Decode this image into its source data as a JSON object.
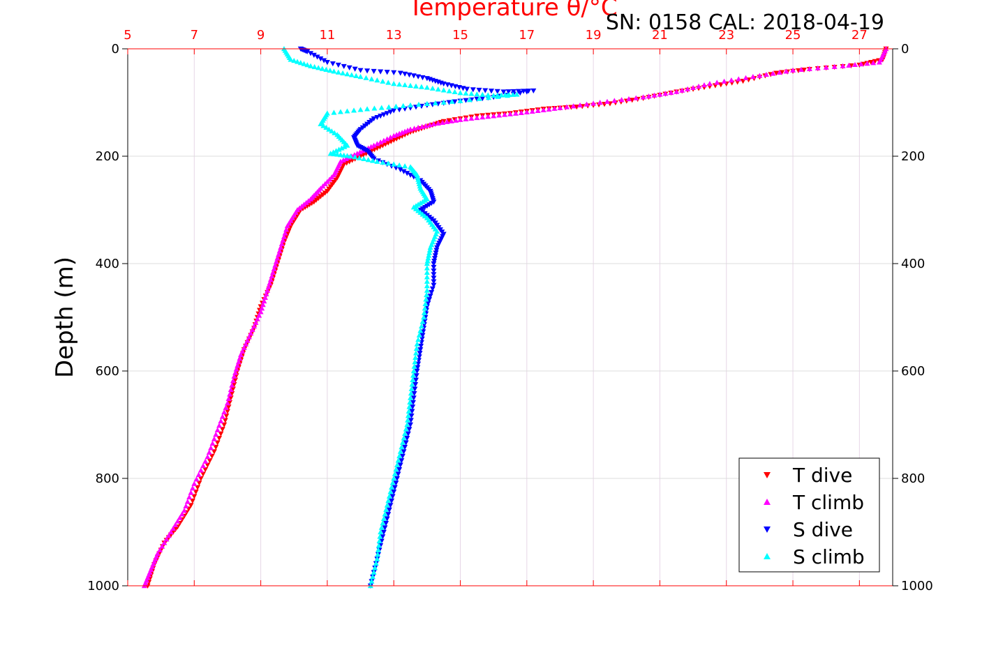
{
  "header": {
    "top_axis_title": "Temperature θ/°C",
    "serial_label": "SN: 0158  CAL: 2018-04-19"
  },
  "colors": {
    "temperature_axis": "#ff0000",
    "grid": "#e6d6e6",
    "t_dive": "#ff0000",
    "t_climb": "#ff00ff",
    "s_dive": "#0000ff",
    "s_climb": "#00ffff"
  },
  "chart_data": {
    "type": "scatter",
    "title": "Temperature θ/°C",
    "xlabel_top": "Temperature θ/°C",
    "ylabel": "Depth (m)",
    "xlim": [
      5,
      28
    ],
    "ylim": [
      1000,
      0
    ],
    "x_ticks": [
      5,
      7,
      9,
      11,
      13,
      15,
      17,
      19,
      21,
      23,
      25,
      27
    ],
    "y_ticks": [
      0,
      200,
      400,
      600,
      800,
      1000
    ],
    "grid": true,
    "legend_position": "bottom-right",
    "series": [
      {
        "name": "T dive",
        "marker": "triangle-down",
        "color": "#ff0000",
        "points": [
          [
            27.8,
            0
          ],
          [
            27.7,
            20
          ],
          [
            27.0,
            30
          ],
          [
            25.5,
            38
          ],
          [
            24.5,
            45
          ],
          [
            23.5,
            60
          ],
          [
            22.5,
            70
          ],
          [
            21.5,
            80
          ],
          [
            20.5,
            92
          ],
          [
            19.5,
            102
          ],
          [
            18.5,
            108
          ],
          [
            17.5,
            112
          ],
          [
            16.5,
            120
          ],
          [
            15.5,
            125
          ],
          [
            14.5,
            135
          ],
          [
            14.0,
            145
          ],
          [
            13.5,
            155
          ],
          [
            13.0,
            170
          ],
          [
            12.5,
            185
          ],
          [
            12.0,
            200
          ],
          [
            11.5,
            215
          ],
          [
            11.3,
            240
          ],
          [
            11.0,
            265
          ],
          [
            10.6,
            285
          ],
          [
            10.2,
            300
          ],
          [
            9.9,
            330
          ],
          [
            9.7,
            360
          ],
          [
            9.5,
            400
          ],
          [
            9.3,
            440
          ],
          [
            9.0,
            480
          ],
          [
            8.8,
            520
          ],
          [
            8.5,
            560
          ],
          [
            8.3,
            600
          ],
          [
            8.1,
            650
          ],
          [
            7.9,
            700
          ],
          [
            7.6,
            750
          ],
          [
            7.2,
            800
          ],
          [
            6.9,
            850
          ],
          [
            6.5,
            890
          ],
          [
            6.1,
            920
          ],
          [
            5.8,
            960
          ],
          [
            5.6,
            1000
          ]
        ]
      },
      {
        "name": "T climb",
        "marker": "triangle-up",
        "color": "#ff00ff",
        "points": [
          [
            27.8,
            0
          ],
          [
            27.6,
            25
          ],
          [
            26.5,
            32
          ],
          [
            25.0,
            40
          ],
          [
            23.8,
            52
          ],
          [
            22.5,
            65
          ],
          [
            21.5,
            80
          ],
          [
            20.5,
            90
          ],
          [
            19.2,
            100
          ],
          [
            18.0,
            110
          ],
          [
            17.0,
            118
          ],
          [
            16.0,
            125
          ],
          [
            15.0,
            132
          ],
          [
            14.2,
            140
          ],
          [
            13.5,
            150
          ],
          [
            13.0,
            162
          ],
          [
            12.4,
            180
          ],
          [
            11.9,
            195
          ],
          [
            11.4,
            210
          ],
          [
            11.2,
            235
          ],
          [
            10.8,
            260
          ],
          [
            10.5,
            280
          ],
          [
            10.1,
            300
          ],
          [
            9.8,
            330
          ],
          [
            9.6,
            370
          ],
          [
            9.4,
            410
          ],
          [
            9.2,
            450
          ],
          [
            9.0,
            490
          ],
          [
            8.7,
            530
          ],
          [
            8.4,
            570
          ],
          [
            8.2,
            610
          ],
          [
            8.0,
            660
          ],
          [
            7.7,
            710
          ],
          [
            7.4,
            760
          ],
          [
            7.0,
            810
          ],
          [
            6.7,
            860
          ],
          [
            6.3,
            900
          ],
          [
            5.9,
            940
          ],
          [
            5.7,
            970
          ],
          [
            5.5,
            1000
          ]
        ]
      },
      {
        "name": "S dive",
        "marker": "triangle-down",
        "color": "#0000ff",
        "points": [
          [
            10.2,
            0
          ],
          [
            10.4,
            5
          ],
          [
            11.0,
            25
          ],
          [
            12.0,
            40
          ],
          [
            13.2,
            45
          ],
          [
            14.0,
            55
          ],
          [
            14.5,
            65
          ],
          [
            15.2,
            75
          ],
          [
            16.3,
            80
          ],
          [
            17.2,
            78
          ],
          [
            16.0,
            90
          ],
          [
            15.0,
            97
          ],
          [
            14.0,
            105
          ],
          [
            13.0,
            115
          ],
          [
            12.4,
            130
          ],
          [
            12.0,
            150
          ],
          [
            11.8,
            165
          ],
          [
            11.9,
            180
          ],
          [
            12.2,
            190
          ],
          [
            12.4,
            205
          ],
          [
            13.2,
            225
          ],
          [
            13.8,
            245
          ],
          [
            14.1,
            265
          ],
          [
            14.2,
            285
          ],
          [
            13.8,
            300
          ],
          [
            14.2,
            320
          ],
          [
            14.5,
            345
          ],
          [
            14.3,
            370
          ],
          [
            14.2,
            400
          ],
          [
            14.2,
            440
          ],
          [
            14.0,
            480
          ],
          [
            13.9,
            520
          ],
          [
            13.8,
            560
          ],
          [
            13.7,
            600
          ],
          [
            13.6,
            650
          ],
          [
            13.5,
            700
          ],
          [
            13.3,
            750
          ],
          [
            13.1,
            800
          ],
          [
            12.9,
            850
          ],
          [
            12.7,
            900
          ],
          [
            12.5,
            950
          ],
          [
            12.3,
            1000
          ]
        ]
      },
      {
        "name": "S climb",
        "marker": "triangle-up",
        "color": "#00ffff",
        "points": [
          [
            9.7,
            0
          ],
          [
            9.9,
            20
          ],
          [
            10.5,
            32
          ],
          [
            11.2,
            42
          ],
          [
            12.0,
            52
          ],
          [
            13.0,
            65
          ],
          [
            14.0,
            72
          ],
          [
            15.0,
            82
          ],
          [
            16.0,
            87
          ],
          [
            16.7,
            85
          ],
          [
            15.0,
            97
          ],
          [
            13.5,
            105
          ],
          [
            12.2,
            112
          ],
          [
            11.0,
            120
          ],
          [
            10.8,
            140
          ],
          [
            11.3,
            160
          ],
          [
            11.6,
            180
          ],
          [
            11.1,
            195
          ],
          [
            11.7,
            200
          ],
          [
            12.5,
            210
          ],
          [
            13.5,
            220
          ],
          [
            13.7,
            235
          ],
          [
            13.8,
            260
          ],
          [
            14.0,
            280
          ],
          [
            13.6,
            295
          ],
          [
            14.0,
            315
          ],
          [
            14.3,
            340
          ],
          [
            14.1,
            370
          ],
          [
            14.0,
            400
          ],
          [
            14.0,
            450
          ],
          [
            13.9,
            500
          ],
          [
            13.7,
            550
          ],
          [
            13.6,
            600
          ],
          [
            13.5,
            650
          ],
          [
            13.4,
            700
          ],
          [
            13.2,
            750
          ],
          [
            13.0,
            800
          ],
          [
            12.8,
            850
          ],
          [
            12.6,
            900
          ],
          [
            12.5,
            950
          ],
          [
            12.3,
            1000
          ]
        ]
      }
    ]
  }
}
